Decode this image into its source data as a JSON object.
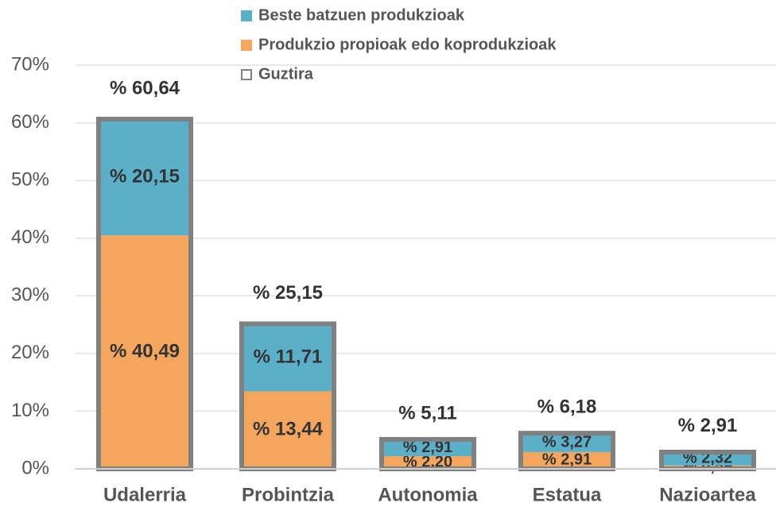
{
  "chart_data": {
    "type": "stacked_bar",
    "categories": [
      "Udalerria",
      "Probintzia",
      "Autonomia",
      "Estatua",
      "Nazioartea"
    ],
    "series": [
      {
        "name": "Beste batzuen produkzioak",
        "color": "#5bafc9",
        "values": [
          20.15,
          11.71,
          2.91,
          3.27,
          2.32
        ],
        "value_labels": [
          "% 20,15",
          "% 11,71",
          "% 2,91",
          "% 3,27",
          "% 2,32"
        ]
      },
      {
        "name": "Produkzio propioak edo koprodukzioak",
        "color": "#f4a65e",
        "values": [
          40.49,
          13.44,
          2.2,
          2.91,
          0.59
        ],
        "value_labels": [
          "% 40,49",
          "% 13,44",
          "% 2,20",
          "% 2,91",
          "% 0,59"
        ]
      }
    ],
    "totals": {
      "name": "Guztira",
      "color": "#808080",
      "values": [
        60.64,
        25.15,
        5.11,
        6.18,
        2.91
      ],
      "value_labels": [
        "% 60,64",
        "% 25,15",
        "% 5,11",
        "% 6,18",
        "% 2,91"
      ]
    },
    "ylim": [
      0,
      70
    ],
    "yticks": [
      {
        "value": 0,
        "label": "0%"
      },
      {
        "value": 10,
        "label": "10%"
      },
      {
        "value": 20,
        "label": "20%"
      },
      {
        "value": 30,
        "label": "30%"
      },
      {
        "value": 40,
        "label": "40%"
      },
      {
        "value": 50,
        "label": "50%"
      },
      {
        "value": 60,
        "label": "60%"
      },
      {
        "value": 70,
        "label": "70%"
      }
    ],
    "grid": true
  }
}
